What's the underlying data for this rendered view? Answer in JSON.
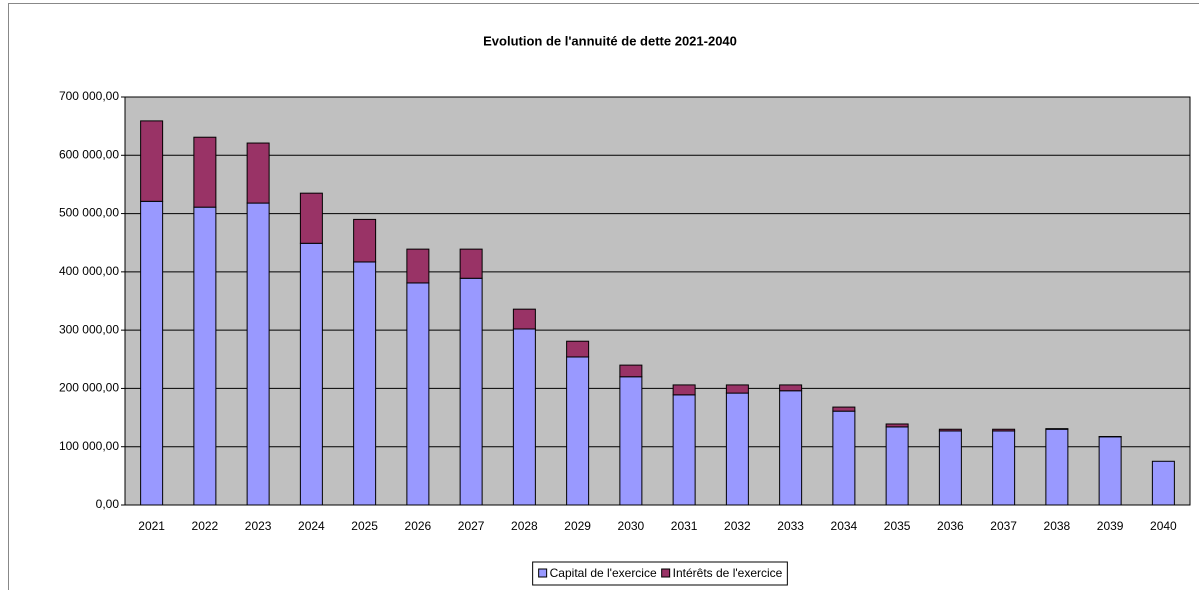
{
  "chart_data": {
    "type": "stacked_bar",
    "title": "Evolution de l'annuité de dette 2021-2040",
    "categories": [
      "2021",
      "2022",
      "2023",
      "2024",
      "2025",
      "2026",
      "2027",
      "2028",
      "2029",
      "2030",
      "2031",
      "2032",
      "2033",
      "2034",
      "2035",
      "2036",
      "2037",
      "2038",
      "2039",
      "2040"
    ],
    "series": [
      {
        "name": "Capital de l'exercice",
        "color": "#9999ff",
        "values": [
          521000,
          511000,
          518000,
          449000,
          417000,
          381000,
          389000,
          302000,
          254000,
          220000,
          189000,
          192000,
          196000,
          161000,
          134000,
          127000,
          127000,
          130000,
          117000,
          75000
        ]
      },
      {
        "name": "Intérêts de l'exercice",
        "color": "#993366",
        "values": [
          138000,
          120000,
          103000,
          86000,
          73000,
          58000,
          50000,
          34000,
          27000,
          20000,
          17000,
          14000,
          10000,
          7000,
          5000,
          3000,
          3000,
          1000,
          500,
          0
        ]
      }
    ],
    "ylim": [
      0,
      700000
    ],
    "yticks": [
      {
        "value": 0,
        "label": "0,00"
      },
      {
        "value": 100000,
        "label": "100 000,00"
      },
      {
        "value": 200000,
        "label": "200 000,00"
      },
      {
        "value": 300000,
        "label": "300 000,00"
      },
      {
        "value": 400000,
        "label": "400 000,00"
      },
      {
        "value": 500000,
        "label": "500 000,00"
      },
      {
        "value": 600000,
        "label": "600 000,00"
      },
      {
        "value": 700000,
        "label": "700 000,00"
      }
    ],
    "grid": true,
    "plot_background": "#c0c0c0",
    "legend": "bottom"
  }
}
